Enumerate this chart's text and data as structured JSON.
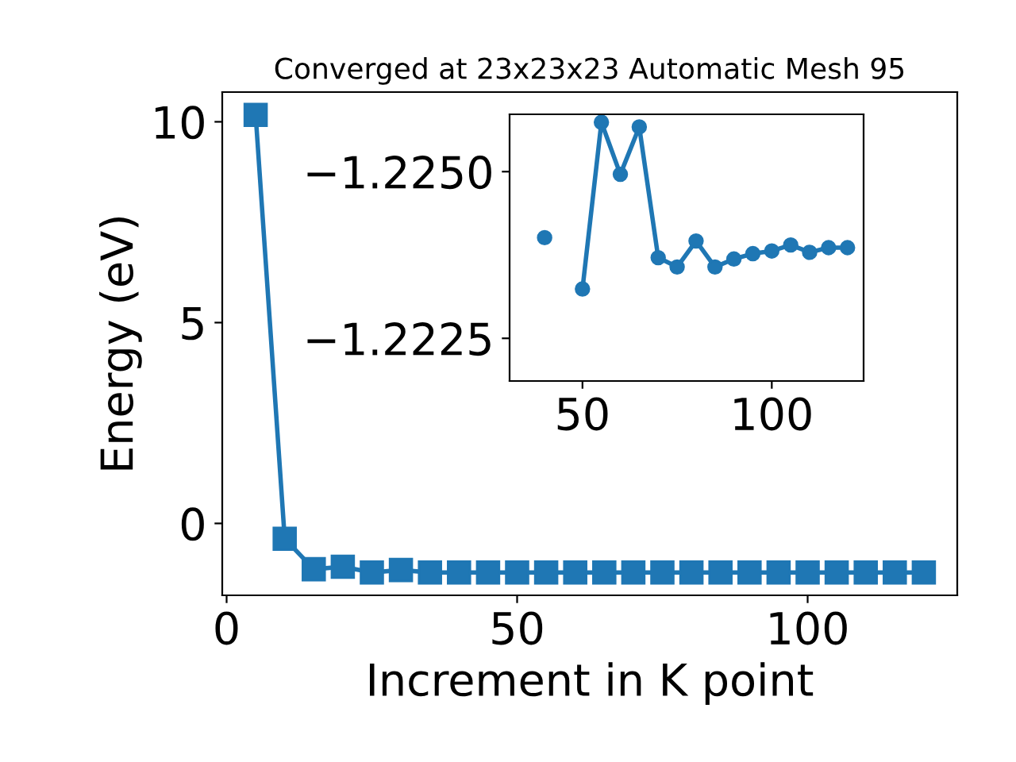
{
  "chart_data": [
    {
      "type": "line",
      "title": "Converged at 23x23x23 Automatic Mesh 95",
      "xlabel": "Increment in K point",
      "ylabel": "Energy (eV)",
      "x": [
        5,
        10,
        15,
        20,
        25,
        30,
        35,
        40,
        45,
        50,
        55,
        60,
        65,
        70,
        75,
        80,
        85,
        90,
        95,
        100,
        105,
        110,
        115,
        120
      ],
      "series": [
        {
          "color": "#1f77b4",
          "values": [
            10.17,
            -0.38,
            -1.14,
            -1.08,
            -1.22,
            -1.16,
            -1.22,
            -1.22,
            -1.22,
            -1.22,
            -1.22,
            -1.22,
            -1.22,
            -1.22,
            -1.22,
            -1.22,
            -1.22,
            -1.22,
            -1.22,
            -1.22,
            -1.22,
            -1.22,
            -1.22,
            -1.22
          ]
        }
      ],
      "xlim": [
        -0.75,
        125.75
      ],
      "ylim": [
        -1.79,
        10.74
      ],
      "xticks": [
        0,
        50,
        100
      ],
      "yticks": [
        0,
        5,
        10
      ],
      "marker": "square",
      "line_style": "solid",
      "grid": false,
      "legend": false
    },
    {
      "type": "line",
      "x": [
        40,
        45,
        50,
        55,
        60,
        65,
        70,
        75,
        80,
        85,
        90,
        95,
        100,
        105,
        110,
        115,
        120
      ],
      "series": [
        {
          "color": "#1f77b4",
          "values": [
            -1.22401,
            null,
            -1.22324,
            -1.22574,
            -1.22496,
            -1.22567,
            -1.22371,
            -1.22357,
            -1.22396,
            -1.22357,
            -1.22369,
            -1.22377,
            -1.22381,
            -1.2239,
            -1.22379,
            -1.22386,
            -1.22386
          ]
        }
      ],
      "xlim": [
        30.75,
        124.25
      ],
      "ylim": [
        -1.22186,
        -1.22586
      ],
      "xticks": [
        50,
        100
      ],
      "yticks": [
        {
          "value": -1.225,
          "label": "−1.2250"
        },
        {
          "value": -1.2225,
          "label": "−1.2225"
        }
      ],
      "marker": "circle",
      "line_style": "solid",
      "grid": false,
      "legend": false
    }
  ]
}
